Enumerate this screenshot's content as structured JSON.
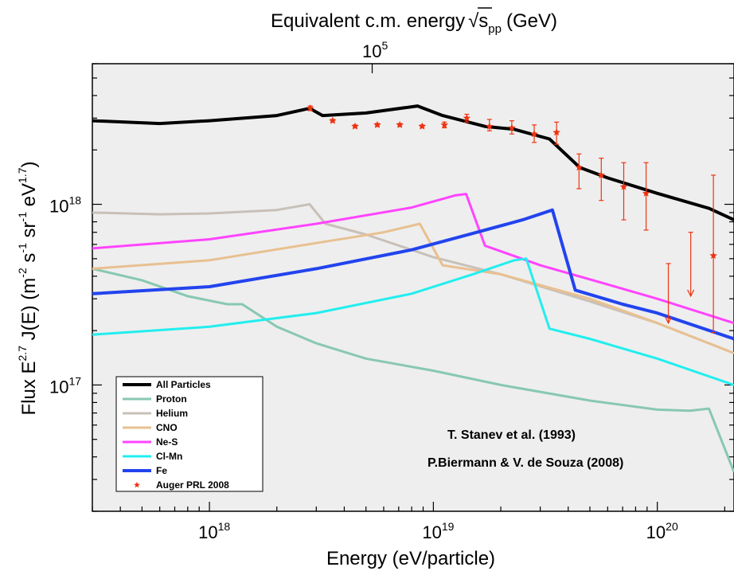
{
  "chart_data": {
    "type": "line",
    "top_axis_title_main": "Equivalent c.m. energy",
    "top_axis_title_sqrt": "√s",
    "top_axis_title_sub": "pp",
    "top_axis_title_unit": "(GeV)",
    "top_axis_tick_base": "10",
    "top_axis_tick_exp": "5",
    "xlabel": "Energy (eV/particle)",
    "ylabel_parts": {
      "a": "Flux E",
      "a_sup": "2.7",
      "b": " J(E) (m",
      "b_sup": "-2",
      "c": " s",
      "c_sup": "-1",
      "d": " sr",
      "d_sup": "-1",
      "e": " eV",
      "e_sup": "1.7",
      "f": ")"
    },
    "x_scale": "log",
    "y_scale": "log",
    "xlim": [
      3e+17,
      2.2e+20
    ],
    "ylim": [
      2e+16,
      6e+18
    ],
    "x_ticks": [
      {
        "value": 1e+18,
        "base": "10",
        "exp": "18"
      },
      {
        "value": 1e+19,
        "base": "10",
        "exp": "19"
      },
      {
        "value": 1e+20,
        "base": "10",
        "exp": "20"
      }
    ],
    "y_ticks": [
      {
        "value": 1e+18,
        "base": "10",
        "exp": "18"
      },
      {
        "value": 1e+17,
        "base": "10",
        "exp": "17"
      }
    ],
    "top_tick_x_value": 5.33e+18,
    "series": [
      {
        "name": "All Particles",
        "color": "#000000",
        "width": 4,
        "x": [
          3e+17,
          6e+17,
          1e+18,
          2e+18,
          2.8e+18,
          3.2e+18,
          5e+18,
          8.5e+18,
          1.1e+19,
          1.7e+19,
          2.3e+19,
          3.3e+19,
          4.5e+19,
          6e+19,
          1e+20,
          1.7e+20,
          2.2e+20
        ],
        "y": [
          2.9e+18,
          2.8e+18,
          2.9e+18,
          3.1e+18,
          3.4e+18,
          3.1e+18,
          3.2e+18,
          3.5e+18,
          3.1e+18,
          2.7e+18,
          2.6e+18,
          2.3e+18,
          1.6e+18,
          1.4e+18,
          1.15e+18,
          9.5e+17,
          8.2e+17
        ]
      },
      {
        "name": "Proton",
        "color": "#88c8b0",
        "width": 3,
        "x": [
          3e+17,
          5e+17,
          8e+17,
          1.2e+18,
          1.4e+18,
          2e+18,
          3e+18,
          5e+18,
          1e+19,
          2e+19,
          5e+19,
          1e+20,
          1.4e+20,
          1.7e+20,
          2.2e+20
        ],
        "y": [
          4.4e+17,
          3.8e+17,
          3.1e+17,
          2.8e+17,
          2.8e+17,
          2.1e+17,
          1.7e+17,
          1.4e+17,
          1.2e+17,
          1e+17,
          8.2e+16,
          7.3e+16,
          7.2e+16,
          7.4e+16,
          3.3e+16
        ]
      },
      {
        "name": "Helium",
        "color": "#c8c0b8",
        "width": 3,
        "x": [
          3e+17,
          6e+17,
          1e+18,
          2e+18,
          2.8e+18,
          3.3e+18,
          5e+18,
          1e+19,
          2e+19,
          5e+19,
          1e+20,
          2.2e+20
        ],
        "y": [
          9e+17,
          8.8e+17,
          8.9e+17,
          9.3e+17,
          1e+18,
          7.8e+17,
          6.8e+17,
          5.1e+17,
          4.1e+17,
          2.9e+17,
          2.2e+17,
          1.5e+17
        ]
      },
      {
        "name": "CNO",
        "color": "#e8c090",
        "width": 3,
        "x": [
          3e+17,
          1e+18,
          3e+18,
          6e+18,
          8.7e+18,
          1.1e+19,
          2e+19,
          5e+19,
          1e+20,
          2.2e+20
        ],
        "y": [
          4.4e+17,
          4.9e+17,
          6.1e+17,
          7e+17,
          7.8e+17,
          4.6e+17,
          4.1e+17,
          3e+17,
          2.2e+17,
          1.5e+17
        ]
      },
      {
        "name": "Ne-S",
        "color": "#ff44ff",
        "width": 3,
        "x": [
          3e+17,
          1e+18,
          3e+18,
          8e+18,
          1.25e+19,
          1.4e+19,
          1.7e+19,
          3e+19,
          6e+19,
          1e+20,
          2.2e+20
        ],
        "y": [
          5.7e+17,
          6.4e+17,
          7.8e+17,
          9.6e+17,
          1.12e+18,
          1.14e+18,
          5.9e+17,
          4.6e+17,
          3.6e+17,
          3e+17,
          2.2e+17
        ]
      },
      {
        "name": "Cl-Mn",
        "color": "#22eeee",
        "width": 3,
        "x": [
          3e+17,
          1e+18,
          3e+18,
          8e+18,
          1.5e+19,
          2.3e+19,
          2.6e+19,
          3.3e+19,
          5e+19,
          1e+20,
          2.2e+20
        ],
        "y": [
          1.9e+17,
          2.1e+17,
          2.5e+17,
          3.2e+17,
          4.1e+17,
          4.9e+17,
          5e+17,
          2.05e+17,
          1.8e+17,
          1.4e+17,
          1e+17
        ]
      },
      {
        "name": "Fe",
        "color": "#2244ee",
        "width": 4,
        "x": [
          3e+17,
          1e+18,
          3e+18,
          8e+18,
          1.5e+19,
          2.5e+19,
          3.4e+19,
          4.3e+19,
          7e+19,
          1e+20,
          2.2e+20
        ],
        "y": [
          3.2e+17,
          3.5e+17,
          4.4e+17,
          5.6e+17,
          6.9e+17,
          8.2e+17,
          9.3e+17,
          3.35e+17,
          2.8e+17,
          2.5e+17,
          1.8e+17
        ]
      }
    ],
    "auger_points": {
      "name": "Auger PRL 2008",
      "color": "#ee3311",
      "x": [
        2.82e+18,
        3.55e+18,
        4.47e+18,
        5.62e+18,
        7.08e+18,
        8.91e+18,
        1.12e+19,
        1.41e+19,
        1.78e+19,
        2.24e+19,
        2.82e+19,
        3.55e+19,
        4.47e+19,
        5.62e+19,
        7.08e+19,
        8.91e+19,
        1.78e+20
      ],
      "y": [
        3.4e+18,
        2.9e+18,
        2.7e+18,
        2.75e+18,
        2.75e+18,
        2.7e+18,
        2.75e+18,
        3e+18,
        2.7e+18,
        2.65e+18,
        2.45e+18,
        2.5e+18,
        1.6e+18,
        1.45e+18,
        1.25e+18,
        1.15e+18,
        5.2e+17
      ],
      "yerr_low": [
        3.3e+18,
        2.85e+18,
        2.65e+18,
        2.7e+18,
        2.7e+18,
        2.65e+18,
        2.65e+18,
        2.85e+18,
        2.55e+18,
        2.45e+18,
        2.2e+18,
        2.15e+18,
        1.22e+18,
        1.05e+18,
        8.2e+17,
        7.2e+17,
        1.95e+17
      ],
      "yerr_high": [
        3.5e+18,
        2.95e+18,
        2.75e+18,
        2.8e+18,
        2.8e+18,
        2.75e+18,
        2.85e+18,
        3.15e+18,
        2.95e+18,
        2.9e+18,
        2.75e+18,
        2.85e+18,
        1.9e+18,
        1.8e+18,
        1.7e+18,
        1.7e+18,
        1.45e+18
      ]
    },
    "upper_limits": {
      "x": [
        1.12e+20,
        1.41e+20
      ],
      "y_from": [
        4.7e+17,
        7e+17
      ],
      "y_to": [
        2.2e+17,
        3.1e+17
      ]
    },
    "legend_placement": "bottom-left",
    "annotations": [
      "T. Stanev et al. (1993)",
      "P.Biermann & V. de Souza (2008)"
    ],
    "grid": false,
    "plot_background": "#eeeeee"
  }
}
